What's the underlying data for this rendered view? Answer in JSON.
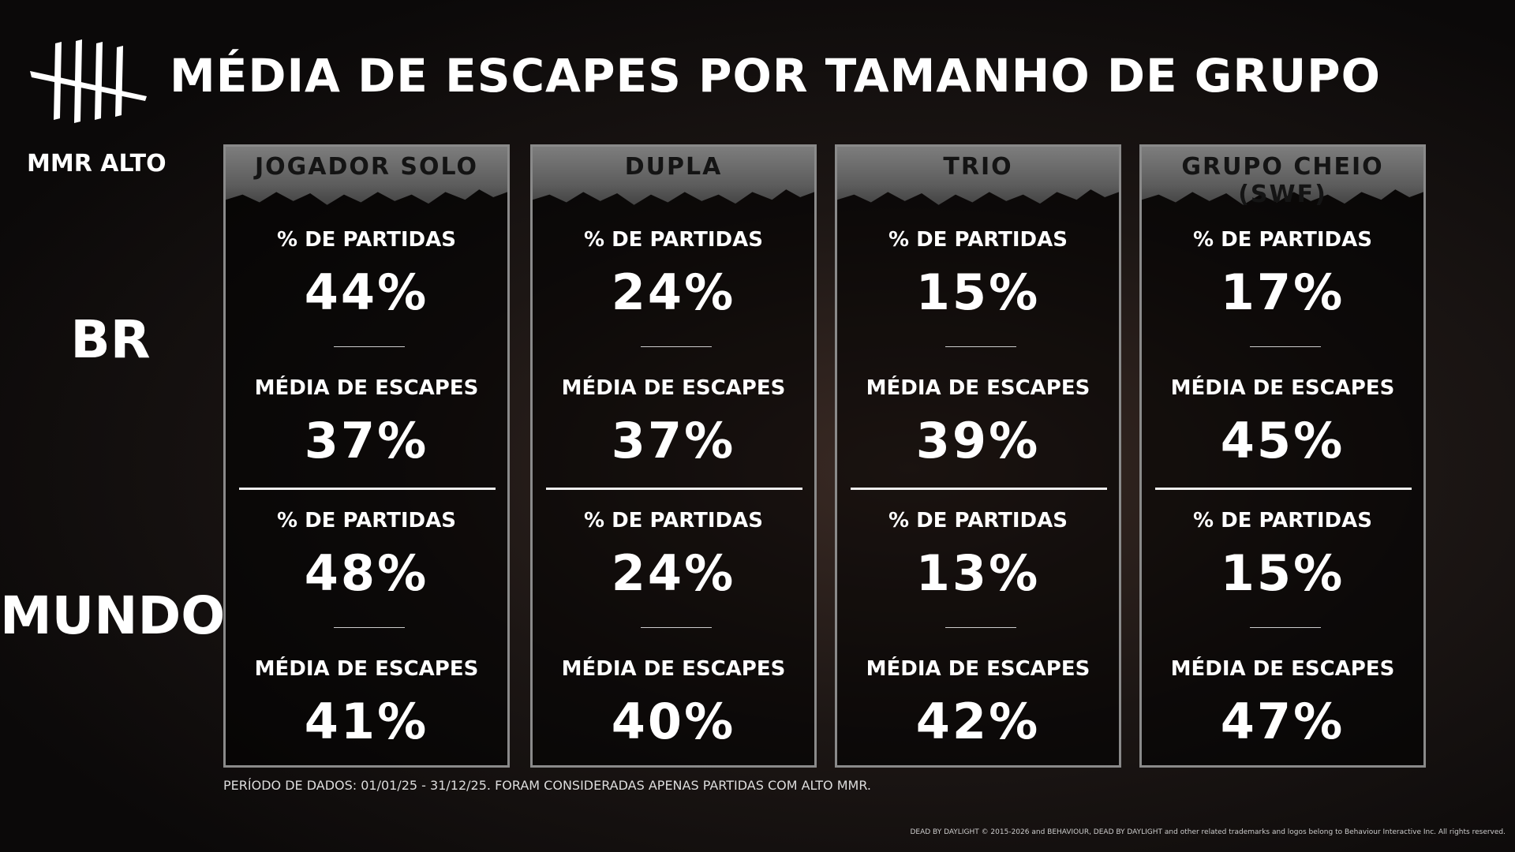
{
  "header": {
    "title": "MÉDIA DE ESCAPES POR TAMANHO DE GRUPO",
    "subtitle": "MMR ALTO"
  },
  "regions": [
    "BR",
    "MUNDO"
  ],
  "columns": [
    {
      "name": "JOGADOR SOLO",
      "rows": [
        {
          "label": "% DE PARTIDAS",
          "value": "44%"
        },
        {
          "label": "MÉDIA DE ESCAPES",
          "value": "37%"
        },
        {
          "label": "% DE PARTIDAS",
          "value": "48%"
        },
        {
          "label": "MÉDIA DE ESCAPES",
          "value": "41%"
        }
      ]
    },
    {
      "name": "DUPLA",
      "rows": [
        {
          "label": "% DE PARTIDAS",
          "value": "24%"
        },
        {
          "label": "MÉDIA DE ESCAPES",
          "value": "37%"
        },
        {
          "label": "% DE PARTIDAS",
          "value": "24%"
        },
        {
          "label": "MÉDIA DE ESCAPES",
          "value": "40%"
        }
      ]
    },
    {
      "name": "TRIO",
      "rows": [
        {
          "label": "% DE PARTIDAS",
          "value": "15%"
        },
        {
          "label": "MÉDIA DE ESCAPES",
          "value": "39%"
        },
        {
          "label": "% DE PARTIDAS",
          "value": "13%"
        },
        {
          "label": "MÉDIA DE ESCAPES",
          "value": "42%"
        }
      ]
    },
    {
      "name": "GRUPO CHEIO (SWF)",
      "rows": [
        {
          "label": "% DE PARTIDAS",
          "value": "17%"
        },
        {
          "label": "MÉDIA DE ESCAPES",
          "value": "45%"
        },
        {
          "label": "% DE PARTIDAS",
          "value": "15%"
        },
        {
          "label": "MÉDIA DE ESCAPES",
          "value": "47%"
        }
      ]
    }
  ],
  "footnote": "PERÍODO DE DADOS: 01/01/25 - 31/12/25. FORAM CONSIDERADAS APENAS PARTIDAS COM ALTO MMR.",
  "copyright": "DEAD BY DAYLIGHT © 2015-2026 and BEHAVIOUR, DEAD BY DAYLIGHT and other related trademarks and logos belong to Behaviour Interactive Inc. All rights reserved."
}
